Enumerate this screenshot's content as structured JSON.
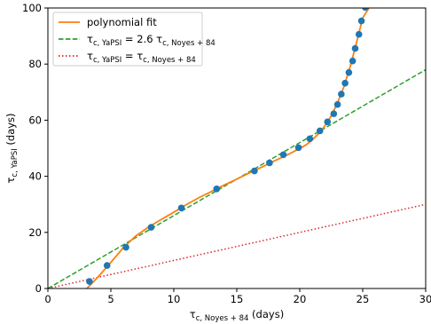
{
  "chart_data": {
    "type": "scatter",
    "title": "",
    "xlabel": {
      "prefix": "τ",
      "sub": "c, Noyes + 84",
      "suffix": " (days)"
    },
    "ylabel": {
      "prefix": "τ",
      "sub": "c, YaPSI",
      "suffix": " (days)"
    },
    "xlim": [
      0,
      30
    ],
    "ylim": [
      0,
      100
    ],
    "xticks": [
      0,
      5,
      10,
      15,
      20,
      25,
      30
    ],
    "yticks": [
      0,
      20,
      40,
      60,
      80,
      100
    ],
    "xtick_labels": [
      "0",
      "5",
      "10",
      "15",
      "20",
      "25",
      "30"
    ],
    "ytick_labels": [
      "0",
      "20",
      "40",
      "60",
      "80",
      "100"
    ],
    "grid": false,
    "legend_position": "top-left",
    "legend": [
      {
        "label": "polynomial fit",
        "style": "solid",
        "color": "#ff7f0e"
      },
      {
        "label_prefix": "τ",
        "label_sub1": "c, YaPSI",
        "label_mid": " = 2.6 τ",
        "label_sub2": "c, Noyes + 84",
        "style": "dashed",
        "color": "#2ca02c"
      },
      {
        "label_prefix": "τ",
        "label_sub1": "c, YaPSI",
        "label_mid": " = τ",
        "label_sub2": "c, Noyes + 84",
        "style": "dotted",
        "color": "#d62728"
      }
    ],
    "points": {
      "name": "",
      "color": "#1f77b4",
      "x": [
        3.3,
        4.7,
        6.2,
        8.2,
        10.6,
        13.4,
        16.4,
        17.6,
        18.7,
        19.9,
        20.8,
        21.6,
        22.2,
        22.7,
        23.0,
        23.3,
        23.6,
        23.9,
        24.2,
        24.4,
        24.7,
        24.9,
        25.2
      ],
      "y": [
        2.5,
        8.2,
        14.7,
        21.8,
        28.7,
        35.5,
        41.9,
        44.8,
        47.7,
        50.2,
        53.4,
        56.2,
        59.4,
        62.3,
        65.6,
        69.3,
        73.2,
        77.0,
        81.1,
        85.6,
        90.6,
        95.4,
        100.2
      ]
    },
    "polynomial_fit": {
      "color": "#ff7f0e",
      "x": [
        3.1,
        4.0,
        5.0,
        6.0,
        7.0,
        8.0,
        9.0,
        10.0,
        11.0,
        12.0,
        13.0,
        14.0,
        15.0,
        16.0,
        17.0,
        18.0,
        19.0,
        20.0,
        20.5,
        21.0,
        21.5,
        22.0,
        22.5,
        23.0,
        23.5,
        24.0,
        24.5,
        25.0,
        25.5
      ],
      "y": [
        0,
        4.2,
        9.3,
        14.6,
        18.8,
        21.9,
        24.6,
        27.2,
        29.9,
        32.4,
        34.6,
        36.9,
        39.0,
        41.2,
        43.3,
        45.5,
        47.6,
        49.9,
        51.2,
        53.0,
        55.2,
        58.0,
        61.5,
        66.2,
        71.8,
        79.0,
        87.5,
        96.5,
        100
      ]
    },
    "lines": [
      {
        "name": "2.6x",
        "color": "#2ca02c",
        "style": "dashed",
        "x": [
          0,
          30
        ],
        "y": [
          0,
          78
        ]
      },
      {
        "name": "1x",
        "color": "#d62728",
        "style": "dotted",
        "x": [
          0,
          30
        ],
        "y": [
          0,
          30
        ]
      }
    ]
  }
}
